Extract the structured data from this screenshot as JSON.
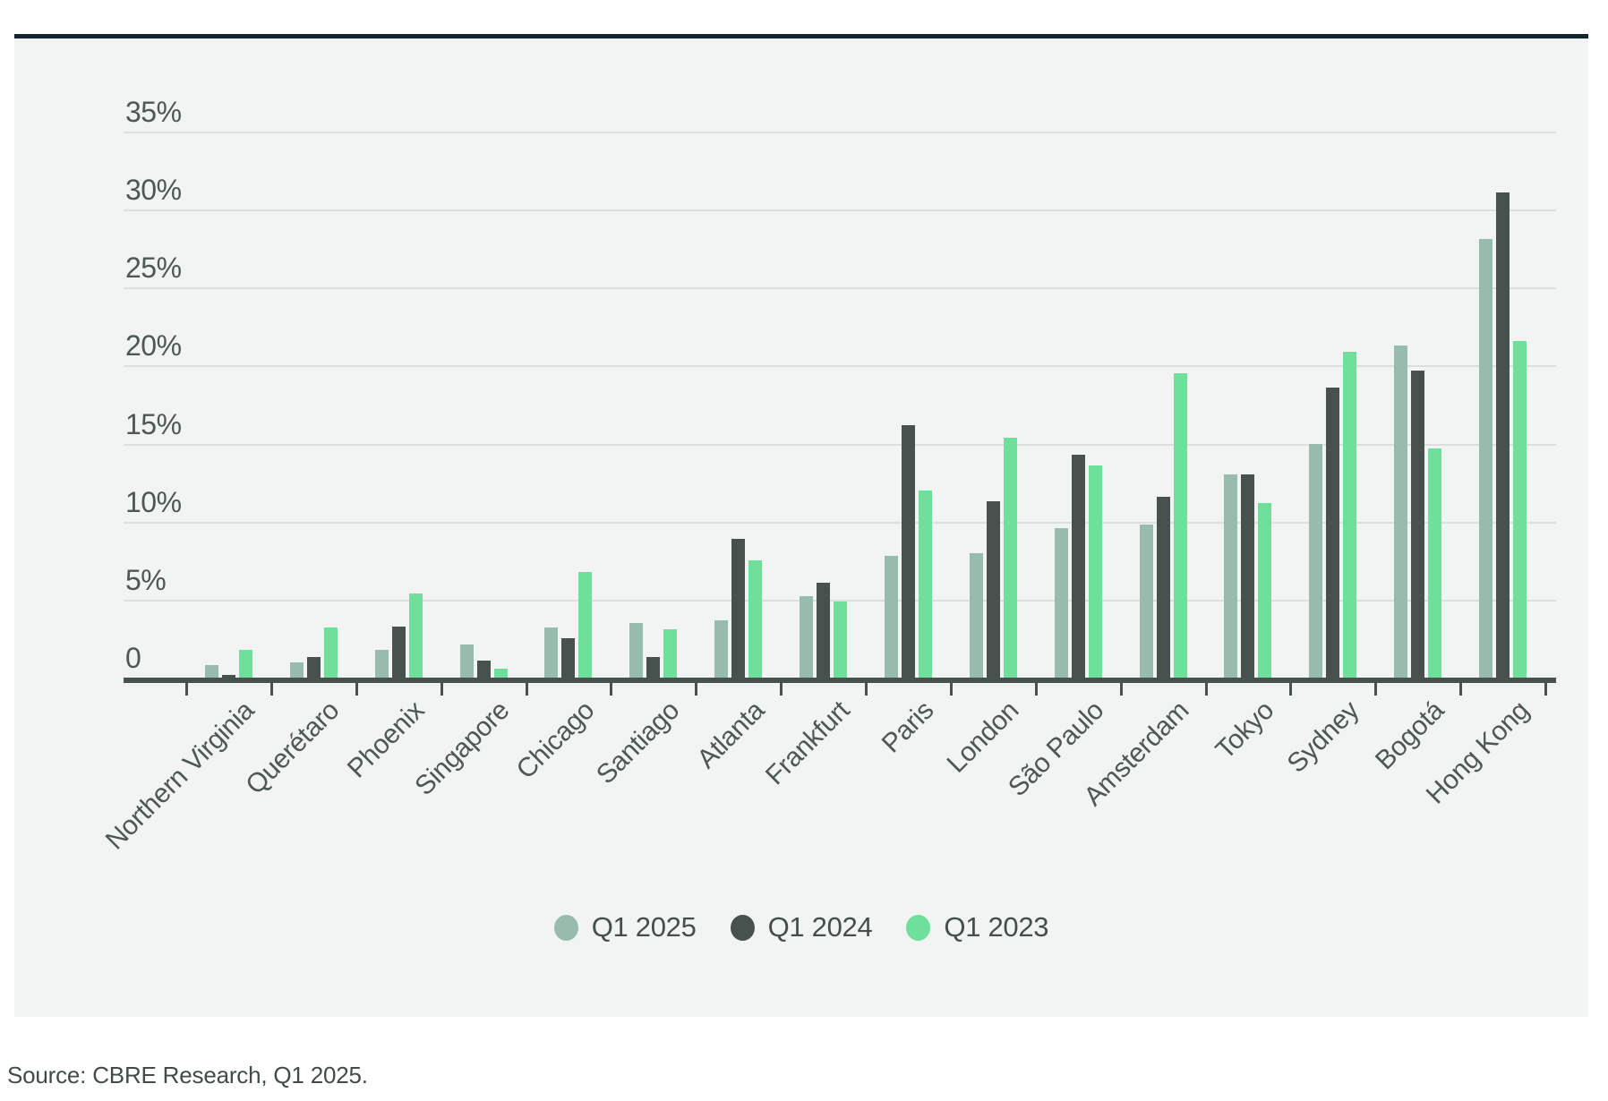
{
  "source": "Source: CBRE Research, Q1 2025.",
  "colors": {
    "background": "#f2f4f3",
    "top_border": "#16262e",
    "gridline": "#dcdfde",
    "axis": "#47524f",
    "text": "#4d5856",
    "q1_2025": "#97bcae",
    "q1_2024": "#47514e",
    "q1_2023": "#6ee09b"
  },
  "chart_data": {
    "type": "bar",
    "title": "",
    "xlabel": "",
    "ylabel": "",
    "ylim": [
      0,
      35
    ],
    "grid": "horizontal",
    "legend_position": "bottom-center",
    "ytick_labels": [
      "35%",
      "30%",
      "25%",
      "20%",
      "15%",
      "10%",
      "5%",
      "0"
    ],
    "ytick_values": [
      35,
      30,
      25,
      20,
      15,
      10,
      5,
      0
    ],
    "xticklabel_rotation": 45,
    "categories": [
      "Northern Virginia",
      "Querétaro",
      "Phoenix",
      "Singapore",
      "Chicago",
      "Santiago",
      "Atlanta",
      "Frankfurt",
      "Paris",
      "London",
      "São Paulo",
      "Amsterdam",
      "Tokyo",
      "Sydney",
      "Bogotá",
      "Hong Kong"
    ],
    "series": [
      {
        "name": "Q1 2025",
        "color": "#97bcae",
        "values": [
          0.8,
          1.0,
          1.8,
          2.1,
          3.2,
          3.5,
          3.7,
          5.2,
          7.8,
          8.0,
          9.6,
          9.8,
          13.0,
          15.0,
          21.3,
          28.1
        ]
      },
      {
        "name": "Q1 2024",
        "color": "#47514e",
        "values": [
          0.2,
          1.3,
          3.3,
          1.1,
          2.5,
          1.3,
          8.9,
          6.1,
          16.2,
          11.3,
          14.3,
          11.6,
          13.0,
          18.6,
          19.7,
          31.1
        ]
      },
      {
        "name": "Q1 2023",
        "color": "#6ee09b",
        "values": [
          1.8,
          3.2,
          5.4,
          0.6,
          6.8,
          3.1,
          7.5,
          4.9,
          12.0,
          15.4,
          13.6,
          19.5,
          11.2,
          20.9,
          14.7,
          21.6
        ]
      }
    ]
  }
}
